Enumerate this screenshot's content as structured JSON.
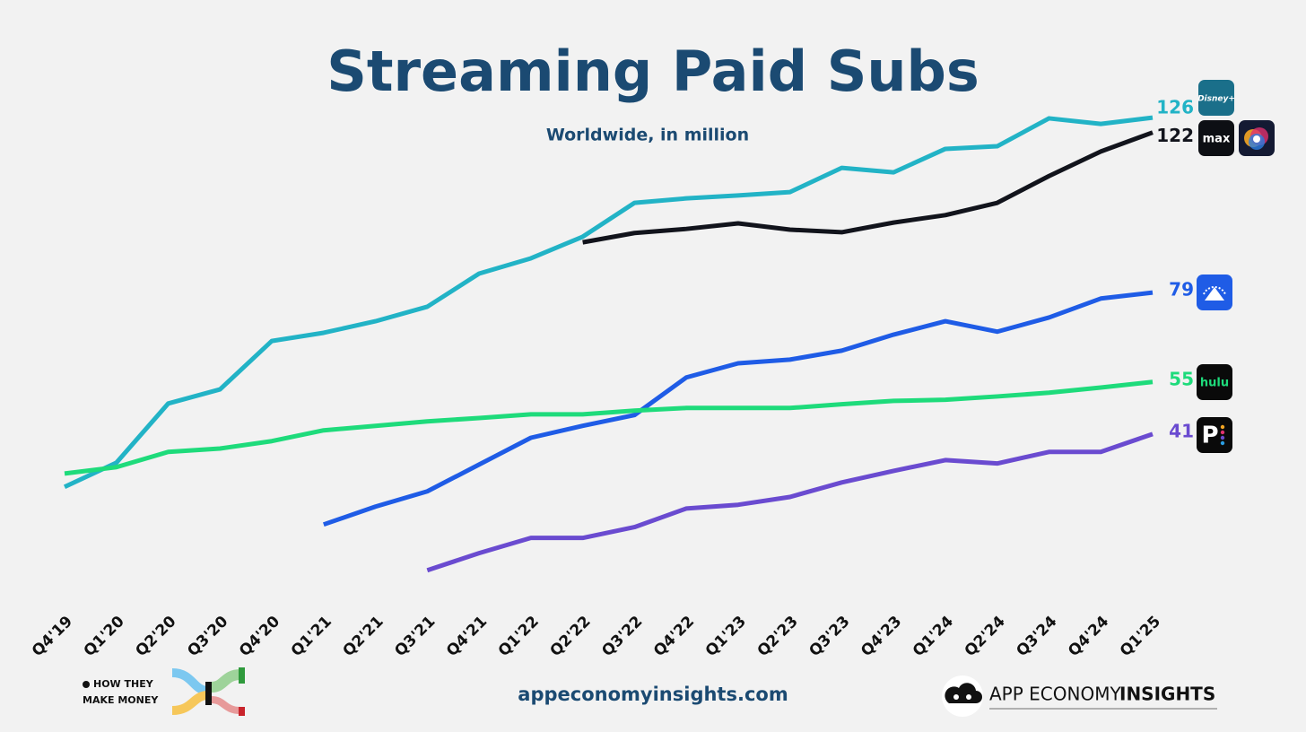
{
  "chart_data": {
    "type": "line",
    "title": "Streaming Paid Subs",
    "subtitle": "Worldwide, in million",
    "categories": [
      "Q4'19",
      "Q1'20",
      "Q2'20",
      "Q3'20",
      "Q4'20",
      "Q1'21",
      "Q2'21",
      "Q3'21",
      "Q4'21",
      "Q1'22",
      "Q2'22",
      "Q3'22",
      "Q4'22",
      "Q1'23",
      "Q2'23",
      "Q3'23",
      "Q4'23",
      "Q1'24",
      "Q2'24",
      "Q3'24",
      "Q4'24",
      "Q1'25"
    ],
    "ylim": [
      0,
      140
    ],
    "series": [
      {
        "name": "Disney+",
        "color": "#22b3c6",
        "values": [
          26.8,
          33.3,
          49.2,
          53,
          66,
          68.2,
          71.3,
          75.2,
          84.1,
          88.2,
          94,
          103.1,
          104.3,
          105.1,
          106,
          112.5,
          111.3,
          117.6,
          118.3,
          125.8,
          124.3,
          126
        ]
      },
      {
        "name": "max",
        "color": "#12141c",
        "values": [
          null,
          null,
          null,
          null,
          null,
          null,
          null,
          null,
          null,
          null,
          92.5,
          95,
          96.1,
          97.6,
          95.9,
          95.2,
          97.8,
          99.8,
          103.1,
          110.3,
          116.9,
          122
        ]
      },
      {
        "color": "#1f5ce6",
        "values": [
          null,
          null,
          null,
          null,
          null,
          16.7,
          21.5,
          25.6,
          32.8,
          40,
          43.2,
          46.1,
          56.2,
          60,
          61,
          63.4,
          67.7,
          71.3,
          68.5,
          72.3,
          77.4,
          79
        ]
      },
      {
        "name": "hulu",
        "color": "#1edb7b",
        "values": [
          30.4,
          32.1,
          36.2,
          37.1,
          39.1,
          42,
          43.2,
          44.4,
          45.3,
          46.3,
          46.3,
          47.3,
          48,
          48,
          48,
          49,
          49.9,
          50.2,
          51.1,
          52.1,
          53.5,
          55
        ]
      },
      {
        "name": "P",
        "color": "#6a4bd0",
        "values": [
          null,
          null,
          null,
          null,
          null,
          null,
          null,
          4.4,
          9,
          13.1,
          13.1,
          16,
          21,
          22,
          24.1,
          28,
          31.1,
          34,
          33.1,
          36.2,
          36.2,
          41
        ]
      }
    ]
  },
  "footer": {
    "left_line1": "HOW THEY",
    "left_line2": "MAKE MONEY",
    "center": "appeconomyinsights.com",
    "right_regular": "APP ECONOMY",
    "right_bold": "INSIGHTS"
  }
}
